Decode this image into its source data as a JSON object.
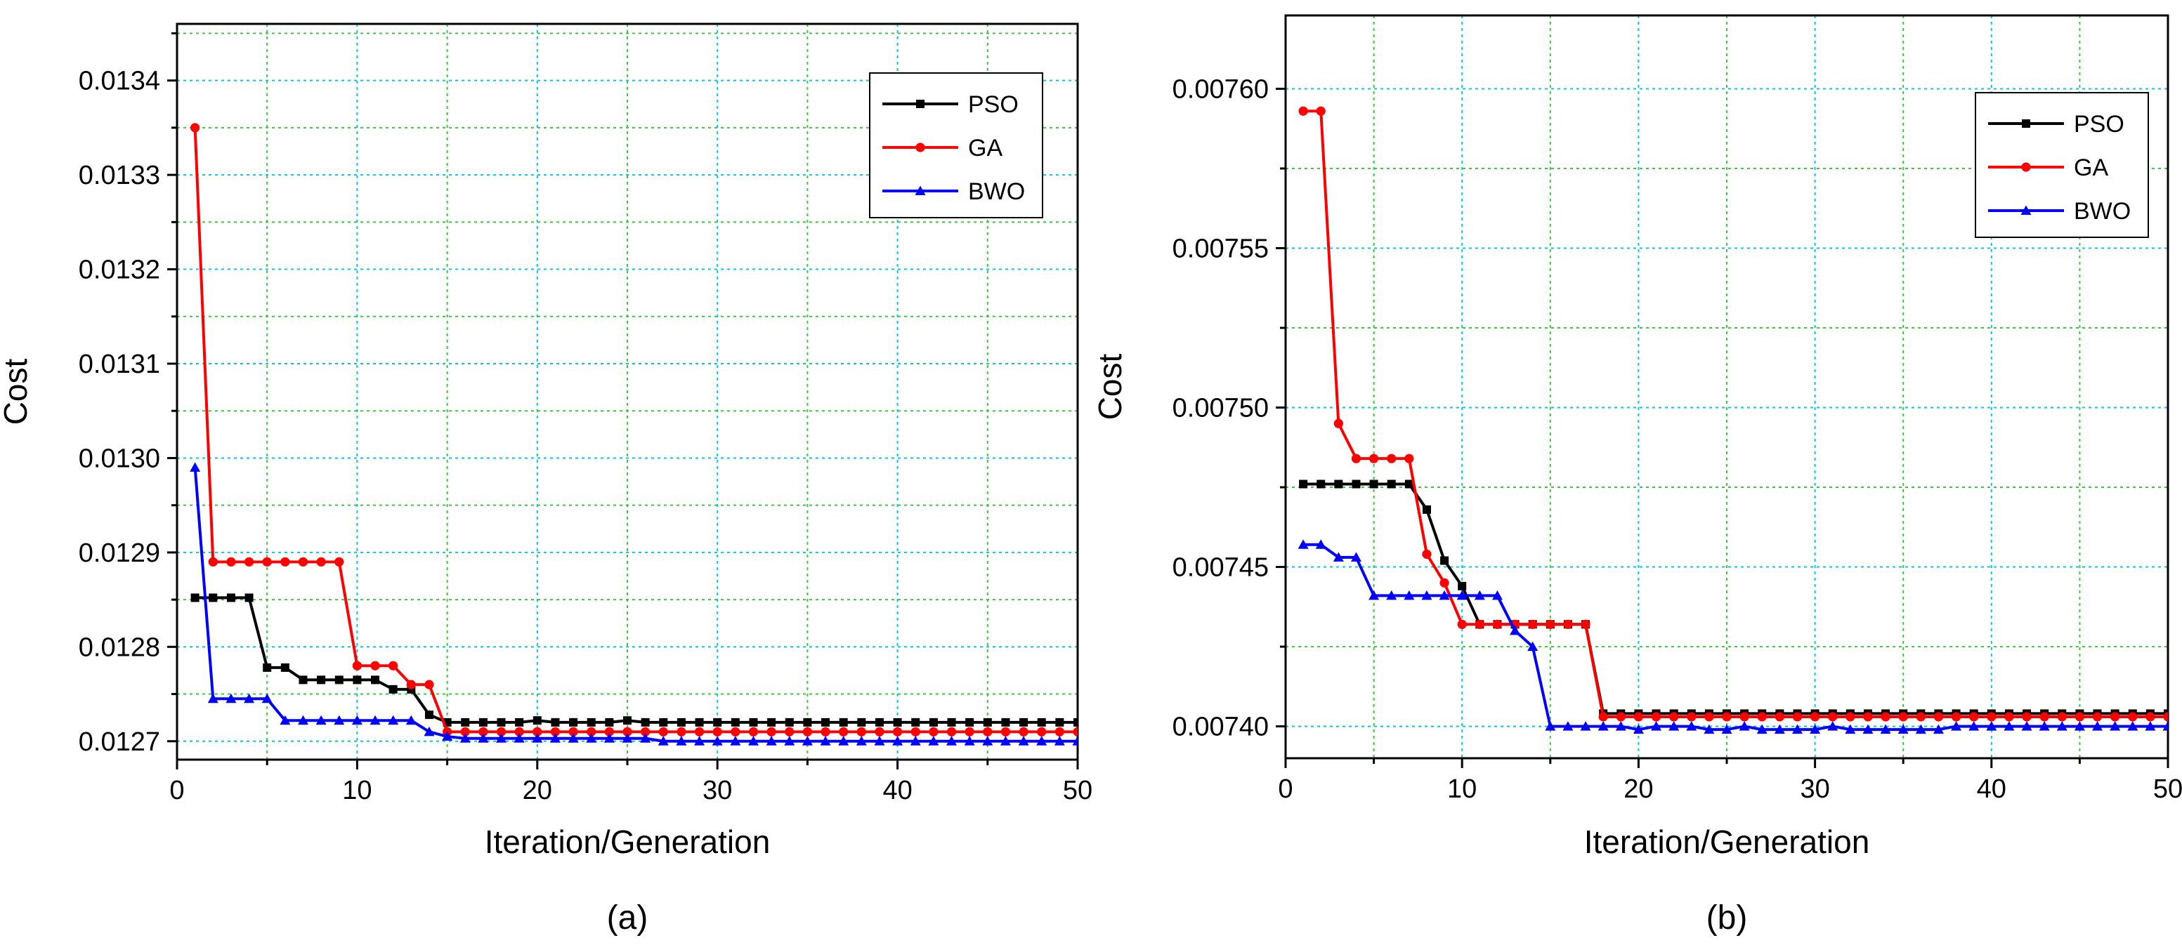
{
  "chart_data": [
    {
      "type": "line",
      "panel_label": "(a)",
      "xlabel": "Iteration/Generation",
      "ylabel": "Cost",
      "xlim": [
        0,
        50
      ],
      "ylim": [
        0.0126805,
        0.01346
      ],
      "xticks": [
        0,
        10,
        20,
        30,
        40,
        50
      ],
      "xtick_labels": [
        "0",
        "10",
        "20",
        "30",
        "40",
        "50"
      ],
      "yticks": [
        0.0127,
        0.0128,
        0.0129,
        0.013,
        0.0131,
        0.0132,
        0.0133,
        0.0134
      ],
      "ytick_labels": [
        "0.0127",
        "0.0128",
        "0.0129",
        "0.0130",
        "0.0131",
        "0.0132",
        "0.0133",
        "0.0134"
      ],
      "grid": true,
      "legend_position": "top-right",
      "series": [
        {
          "name": "PSO",
          "color": "#000000",
          "marker": "square",
          "x": [
            1,
            2,
            3,
            4,
            5,
            6,
            7,
            8,
            9,
            10,
            11,
            12,
            13,
            14,
            15,
            16,
            17,
            18,
            19,
            20,
            21,
            22,
            23,
            24,
            25,
            26,
            27,
            28,
            29,
            30,
            31,
            32,
            33,
            34,
            35,
            36,
            37,
            38,
            39,
            40,
            41,
            42,
            43,
            44,
            45,
            46,
            47,
            48,
            49,
            50
          ],
          "y": [
            0.012852,
            0.012852,
            0.012852,
            0.012852,
            0.012778,
            0.012778,
            0.012765,
            0.012765,
            0.012765,
            0.012765,
            0.012765,
            0.012755,
            0.012755,
            0.012728,
            0.01272,
            0.01272,
            0.01272,
            0.01272,
            0.01272,
            0.012722,
            0.01272,
            0.01272,
            0.01272,
            0.01272,
            0.012722,
            0.01272,
            0.01272,
            0.01272,
            0.01272,
            0.01272,
            0.01272,
            0.01272,
            0.01272,
            0.01272,
            0.01272,
            0.01272,
            0.01272,
            0.01272,
            0.01272,
            0.01272,
            0.01272,
            0.01272,
            0.01272,
            0.01272,
            0.01272,
            0.01272,
            0.01272,
            0.01272,
            0.01272,
            0.01272
          ]
        },
        {
          "name": "GA",
          "color": "#ff0000",
          "marker": "circle",
          "x": [
            1,
            2,
            3,
            4,
            5,
            6,
            7,
            8,
            9,
            10,
            11,
            12,
            13,
            14,
            15,
            16,
            17,
            18,
            19,
            20,
            21,
            22,
            23,
            24,
            25,
            26,
            27,
            28,
            29,
            30,
            31,
            32,
            33,
            34,
            35,
            36,
            37,
            38,
            39,
            40,
            41,
            42,
            43,
            44,
            45,
            46,
            47,
            48,
            49,
            50
          ],
          "y": [
            0.01335,
            0.01289,
            0.01289,
            0.01289,
            0.01289,
            0.01289,
            0.01289,
            0.01289,
            0.01289,
            0.01278,
            0.01278,
            0.01278,
            0.01276,
            0.01276,
            0.01271,
            0.01271,
            0.01271,
            0.01271,
            0.01271,
            0.01271,
            0.01271,
            0.01271,
            0.01271,
            0.01271,
            0.01271,
            0.01271,
            0.01271,
            0.01271,
            0.01271,
            0.01271,
            0.01271,
            0.01271,
            0.01271,
            0.01271,
            0.01271,
            0.01271,
            0.01271,
            0.01271,
            0.01271,
            0.01271,
            0.01271,
            0.01271,
            0.01271,
            0.01271,
            0.01271,
            0.01271,
            0.01271,
            0.01271,
            0.01271,
            0.01271
          ]
        },
        {
          "name": "BWO",
          "color": "#0000ff",
          "marker": "triangle",
          "x": [
            1,
            2,
            3,
            4,
            5,
            6,
            7,
            8,
            9,
            10,
            11,
            12,
            13,
            14,
            15,
            16,
            17,
            18,
            19,
            20,
            21,
            22,
            23,
            24,
            25,
            26,
            27,
            28,
            29,
            30,
            31,
            32,
            33,
            34,
            35,
            36,
            37,
            38,
            39,
            40,
            41,
            42,
            43,
            44,
            45,
            46,
            47,
            48,
            49,
            50
          ],
          "y": [
            0.01299,
            0.012745,
            0.012745,
            0.012745,
            0.012745,
            0.012722,
            0.012722,
            0.012722,
            0.012722,
            0.012722,
            0.012722,
            0.012722,
            0.012722,
            0.01271,
            0.012705,
            0.012703,
            0.012703,
            0.012703,
            0.012703,
            0.012703,
            0.012703,
            0.012703,
            0.012703,
            0.012703,
            0.012703,
            0.012703,
            0.0127,
            0.0127,
            0.0127,
            0.0127,
            0.0127,
            0.0127,
            0.0127,
            0.0127,
            0.0127,
            0.0127,
            0.0127,
            0.0127,
            0.0127,
            0.0127,
            0.0127,
            0.0127,
            0.0127,
            0.0127,
            0.0127,
            0.0127,
            0.0127,
            0.0127,
            0.0127,
            0.0127
          ]
        }
      ]
    },
    {
      "type": "line",
      "panel_label": "(b)",
      "xlabel": "Iteration/Generation",
      "ylabel": "Cost",
      "xlim": [
        0,
        50
      ],
      "ylim": [
        0.00739,
        0.007623
      ],
      "xticks": [
        0,
        10,
        20,
        30,
        40,
        50
      ],
      "xtick_labels": [
        "0",
        "10",
        "20",
        "30",
        "40",
        "50"
      ],
      "yticks": [
        0.0074,
        0.00745,
        0.0075,
        0.00755,
        0.0076
      ],
      "ytick_labels": [
        "0.00740",
        "0.00745",
        "0.00750",
        "0.00755",
        "0.00760"
      ],
      "grid": true,
      "legend_position": "top-right",
      "series": [
        {
          "name": "PSO",
          "color": "#000000",
          "marker": "square",
          "x": [
            1,
            2,
            3,
            4,
            5,
            6,
            7,
            8,
            9,
            10,
            11,
            12,
            13,
            14,
            15,
            16,
            17,
            18,
            19,
            20,
            21,
            22,
            23,
            24,
            25,
            26,
            27,
            28,
            29,
            30,
            31,
            32,
            33,
            34,
            35,
            36,
            37,
            38,
            39,
            40,
            41,
            42,
            43,
            44,
            45,
            46,
            47,
            48,
            49,
            50
          ],
          "y": [
            0.007476,
            0.007476,
            0.007476,
            0.007476,
            0.007476,
            0.007476,
            0.007476,
            0.007468,
            0.007452,
            0.007444,
            0.007432,
            0.007432,
            0.007432,
            0.007432,
            0.007432,
            0.007432,
            0.007432,
            0.007404,
            0.007404,
            0.007404,
            0.007404,
            0.007404,
            0.007404,
            0.007404,
            0.007404,
            0.007404,
            0.007404,
            0.007404,
            0.007404,
            0.007404,
            0.007404,
            0.007404,
            0.007404,
            0.007404,
            0.007404,
            0.007404,
            0.007404,
            0.007404,
            0.007404,
            0.007404,
            0.007404,
            0.007404,
            0.007404,
            0.007404,
            0.007404,
            0.007404,
            0.007404,
            0.007404,
            0.007404,
            0.007404
          ]
        },
        {
          "name": "GA",
          "color": "#ff0000",
          "marker": "circle",
          "x": [
            1,
            2,
            3,
            4,
            5,
            6,
            7,
            8,
            9,
            10,
            11,
            12,
            13,
            14,
            15,
            16,
            17,
            18,
            19,
            20,
            21,
            22,
            23,
            24,
            25,
            26,
            27,
            28,
            29,
            30,
            31,
            32,
            33,
            34,
            35,
            36,
            37,
            38,
            39,
            40,
            41,
            42,
            43,
            44,
            45,
            46,
            47,
            48,
            49,
            50
          ],
          "y": [
            0.007593,
            0.007593,
            0.007495,
            0.007484,
            0.007484,
            0.007484,
            0.007484,
            0.007454,
            0.007445,
            0.007432,
            0.007432,
            0.007432,
            0.007432,
            0.007432,
            0.007432,
            0.007432,
            0.007432,
            0.007403,
            0.007403,
            0.007403,
            0.007403,
            0.007403,
            0.007403,
            0.007403,
            0.007403,
            0.007403,
            0.007403,
            0.007403,
            0.007403,
            0.007403,
            0.007403,
            0.007403,
            0.007403,
            0.007403,
            0.007403,
            0.007403,
            0.007403,
            0.007403,
            0.007403,
            0.007403,
            0.007403,
            0.007403,
            0.007403,
            0.007403,
            0.007403,
            0.007403,
            0.007403,
            0.007403,
            0.007403,
            0.007403
          ]
        },
        {
          "name": "BWO",
          "color": "#0000ff",
          "marker": "triangle",
          "x": [
            1,
            2,
            3,
            4,
            5,
            6,
            7,
            8,
            9,
            10,
            11,
            12,
            13,
            14,
            15,
            16,
            17,
            18,
            19,
            20,
            21,
            22,
            23,
            24,
            25,
            26,
            27,
            28,
            29,
            30,
            31,
            32,
            33,
            34,
            35,
            36,
            37,
            38,
            39,
            40,
            41,
            42,
            43,
            44,
            45,
            46,
            47,
            48,
            49,
            50
          ],
          "y": [
            0.007457,
            0.007457,
            0.007453,
            0.007453,
            0.007441,
            0.007441,
            0.007441,
            0.007441,
            0.007441,
            0.007441,
            0.007441,
            0.007441,
            0.00743,
            0.007425,
            0.0074,
            0.0074,
            0.0074,
            0.0074,
            0.0074,
            0.007399,
            0.0074,
            0.0074,
            0.0074,
            0.007399,
            0.007399,
            0.0074,
            0.007399,
            0.007399,
            0.007399,
            0.007399,
            0.0074,
            0.007399,
            0.007399,
            0.007399,
            0.007399,
            0.007399,
            0.007399,
            0.0074,
            0.0074,
            0.0074,
            0.0074,
            0.0074,
            0.0074,
            0.0074,
            0.0074,
            0.0074,
            0.0074,
            0.0074,
            0.0074,
            0.0074
          ]
        }
      ]
    }
  ]
}
